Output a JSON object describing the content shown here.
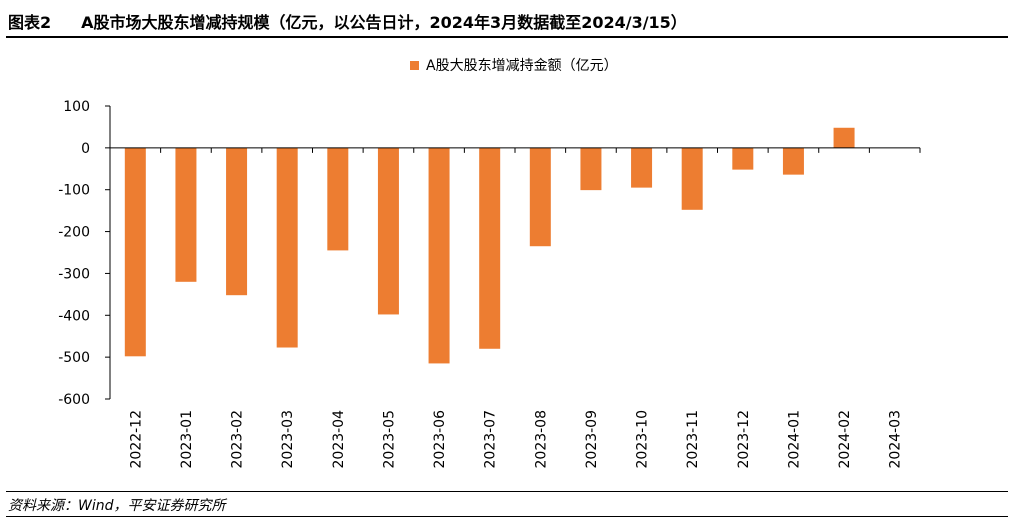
{
  "figure": {
    "label": "图表2",
    "title": "A股市场大股东增减持规模（亿元，以公告日计，2024年3月数据截至2024/3/15）",
    "source": "资料来源：Wind，平安证券研究所"
  },
  "colors": {
    "bar": "#ED7D31",
    "axis": "#000000",
    "text": "#000000"
  },
  "chart_data": {
    "type": "bar",
    "categories": [
      "2022-12",
      "2023-01",
      "2023-02",
      "2023-03",
      "2023-04",
      "2023-05",
      "2023-06",
      "2023-07",
      "2023-08",
      "2023-09",
      "2023-10",
      "2023-11",
      "2023-12",
      "2024-01",
      "2024-02",
      "2024-03"
    ],
    "series": [
      {
        "name": "A股大股东增减持金额（亿元）",
        "values": [
          -498,
          -320,
          -352,
          -477,
          -245,
          -398,
          -515,
          -480,
          -235,
          -101,
          -95,
          -148,
          -52,
          -64,
          48,
          0
        ]
      }
    ],
    "yticks": [
      100,
      0,
      -100,
      -200,
      -300,
      -400,
      -500,
      -600
    ],
    "ylim": [
      -600,
      100
    ],
    "legend_position": "top-center",
    "grid": false
  }
}
